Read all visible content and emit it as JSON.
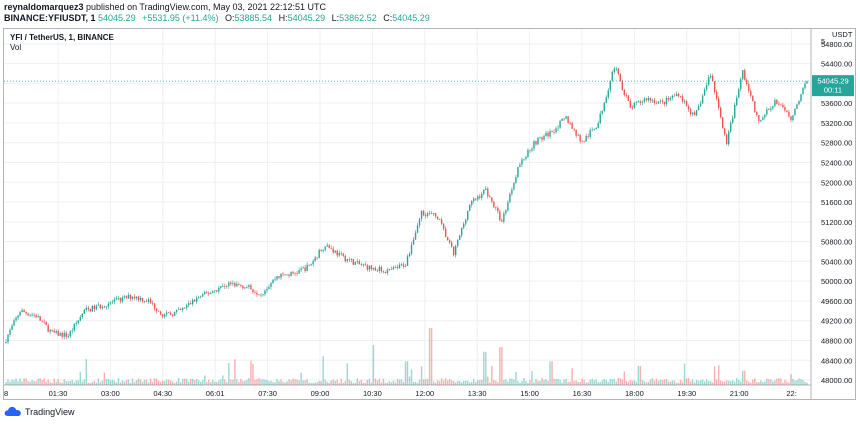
{
  "header": {
    "author": "reynaldomarquez3",
    "published": " published on TradingView.com, May 03, 2021 22:12:51 UTC"
  },
  "ohlc": {
    "symbol": "BINANCE:YFIUSDT, 1",
    "last": "54045.29",
    "change": "+5531.95 (+11.4%)",
    "open_label": "O:",
    "open": "53885.54",
    "high_label": "H:",
    "high": "54045.29",
    "low_label": "L:",
    "low": "53862.52",
    "close_label": "C:",
    "close": "54045.29"
  },
  "legend": {
    "title": "YFI / TetherUS, 1, BINANCE",
    "vol": "Vol"
  },
  "footer": {
    "brand": "TradingView"
  },
  "colors": {
    "up": "#26a69a",
    "down": "#ef5350",
    "price_label_bg": "#26a69a",
    "grid": "#eef0f3",
    "axis_text": "#131722"
  },
  "chart_data": {
    "type": "candlestick",
    "title": "YFI / TetherUS, 1, BINANCE",
    "currency": "USDT",
    "ylim": [
      47900,
      55100
    ],
    "y_ticks": [
      48000,
      48400,
      48800,
      49200,
      49600,
      50000,
      50400,
      50800,
      51200,
      51600,
      52000,
      52400,
      52800,
      53200,
      53600,
      54000,
      54400,
      54800
    ],
    "y_tick_labels": [
      "48000.00",
      "48400.00",
      "48800.00",
      "49200.00",
      "49600.00",
      "50000.00",
      "50400.00",
      "50800.00",
      "51200.00",
      "51600.00",
      "52000.00",
      "52400.00",
      "52800.00",
      "53200.00",
      "53600.00",
      "54000.00",
      "54400.00",
      "54800.00"
    ],
    "top_partial_label": "5",
    "x_tick_labels": [
      "01:30",
      "03:00",
      "04:30",
      "06:01",
      "07:30",
      "09:00",
      "10:30",
      "12:00",
      "13:30",
      "15:00",
      "16:30",
      "18:00",
      "19:30",
      "21:00",
      "22:"
    ],
    "x_first_partial": "8",
    "last_price": 54045.29,
    "last_price_label": "54045.29",
    "countdown": "00:11",
    "price_path": [
      [
        0,
        48750
      ],
      [
        0.02,
        49400
      ],
      [
        0.04,
        49300
      ],
      [
        0.06,
        48950
      ],
      [
        0.08,
        48900
      ],
      [
        0.1,
        49400
      ],
      [
        0.12,
        49500
      ],
      [
        0.14,
        49600
      ],
      [
        0.16,
        49700
      ],
      [
        0.18,
        49600
      ],
      [
        0.2,
        49300
      ],
      [
        0.22,
        49400
      ],
      [
        0.24,
        49650
      ],
      [
        0.26,
        49800
      ],
      [
        0.28,
        49950
      ],
      [
        0.3,
        49900
      ],
      [
        0.32,
        49750
      ],
      [
        0.34,
        50100
      ],
      [
        0.36,
        50150
      ],
      [
        0.38,
        50300
      ],
      [
        0.4,
        50750
      ],
      [
        0.42,
        50500
      ],
      [
        0.44,
        50350
      ],
      [
        0.46,
        50250
      ],
      [
        0.48,
        50200
      ],
      [
        0.5,
        50350
      ],
      [
        0.52,
        51400
      ],
      [
        0.54,
        51300
      ],
      [
        0.56,
        50550
      ],
      [
        0.58,
        51550
      ],
      [
        0.6,
        51850
      ],
      [
        0.62,
        51200
      ],
      [
        0.64,
        52300
      ],
      [
        0.66,
        52800
      ],
      [
        0.68,
        53000
      ],
      [
        0.7,
        53300
      ],
      [
        0.72,
        52800
      ],
      [
        0.74,
        53200
      ],
      [
        0.76,
        54350
      ],
      [
        0.78,
        53500
      ],
      [
        0.8,
        53700
      ],
      [
        0.82,
        53600
      ],
      [
        0.84,
        53800
      ],
      [
        0.86,
        53300
      ],
      [
        0.88,
        54200
      ],
      [
        0.9,
        52800
      ],
      [
        0.92,
        54250
      ],
      [
        0.94,
        53200
      ],
      [
        0.96,
        53650
      ],
      [
        0.98,
        53300
      ],
      [
        1.0,
        54045.29
      ]
    ],
    "volume_spikes": [
      [
        0.53,
        0.6
      ],
      [
        0.5,
        0.25
      ],
      [
        0.62,
        0.4
      ],
      [
        0.31,
        0.22
      ],
      [
        0.68,
        0.25
      ],
      [
        0.79,
        0.2
      ],
      [
        0.6,
        0.35
      ],
      [
        0.92,
        0.15
      ],
      [
        0.46,
        0.18
      ],
      [
        0.25,
        0.1
      ]
    ]
  }
}
